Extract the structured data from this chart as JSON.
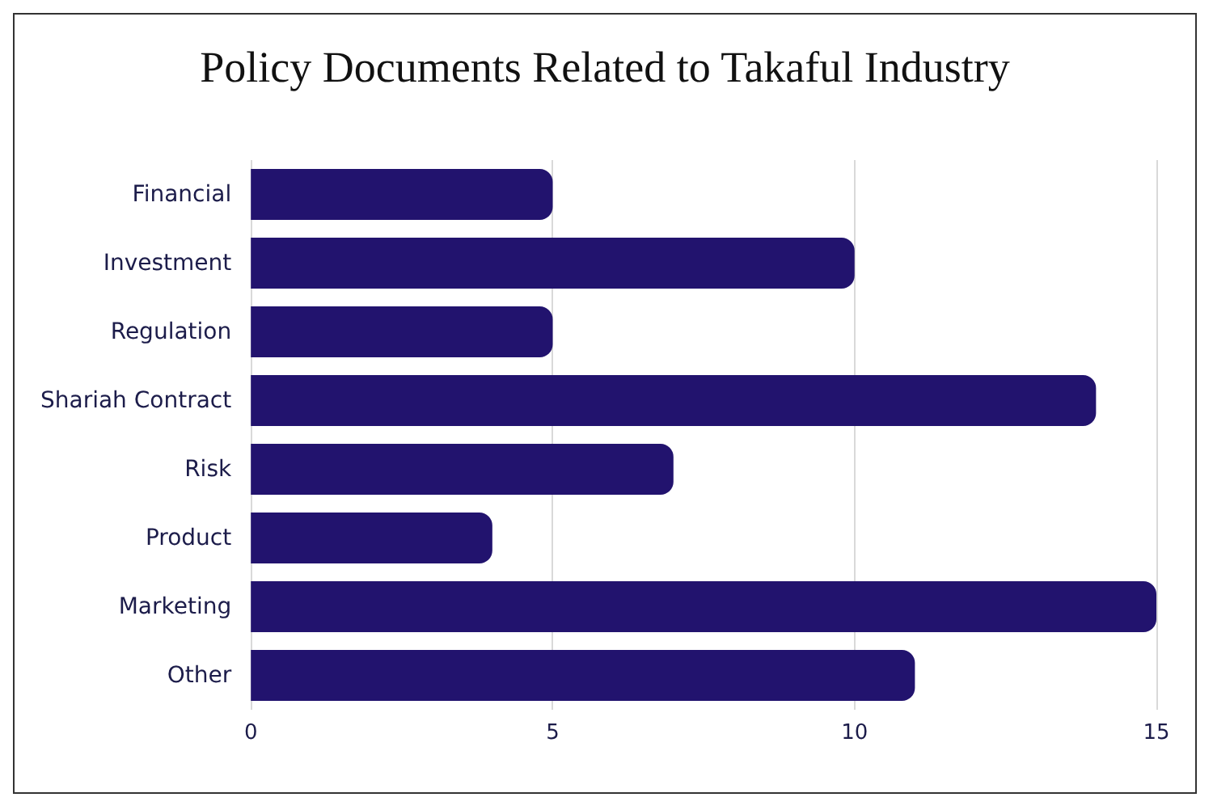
{
  "chart_data": {
    "type": "bar",
    "orientation": "horizontal",
    "title": "Policy Documents Related to Takaful Industry",
    "categories": [
      "Financial",
      "Investment",
      "Regulation",
      "Shariah Contract",
      "Risk",
      "Product",
      "Marketing",
      "Other"
    ],
    "values": [
      5,
      10,
      5,
      14,
      7,
      4,
      15,
      11
    ],
    "color": "#22136e",
    "xlim": [
      0,
      15
    ],
    "xticks": [
      0,
      5,
      10,
      15
    ],
    "grid": "x"
  }
}
